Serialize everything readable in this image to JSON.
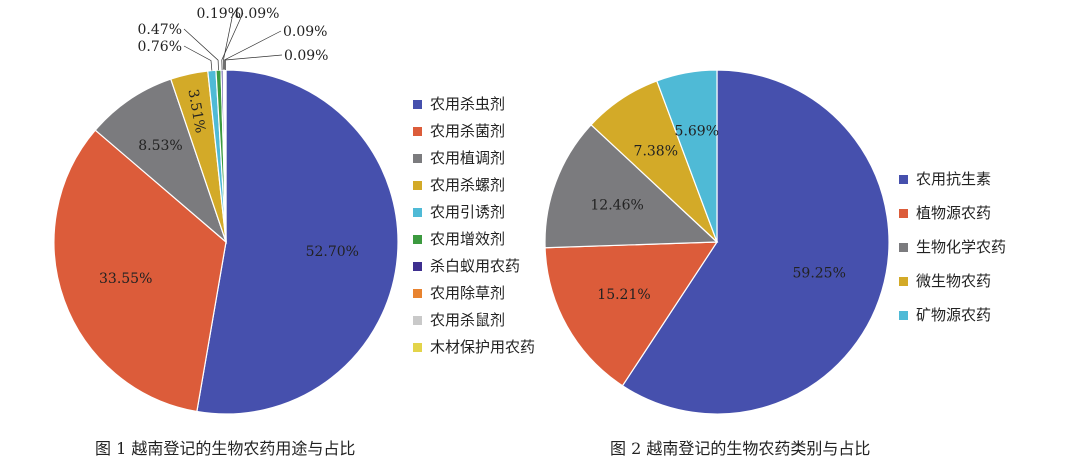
{
  "chart_data": [
    {
      "type": "pie",
      "caption": "图 1   越南登记的生物农药用途与占比",
      "slices": [
        {
          "label": "农用杀虫剂",
          "value": 52.7,
          "label_text": "52.70%",
          "color": "#4650ad"
        },
        {
          "label": "农用杀菌剂",
          "value": 33.55,
          "label_text": "33.55%",
          "color": "#dc5c3a"
        },
        {
          "label": "农用植调剂",
          "value": 8.53,
          "label_text": "8.53%",
          "color": "#7b7b7e"
        },
        {
          "label": "农用杀螺剂",
          "value": 3.51,
          "label_text": "3.51%",
          "color": "#d3aa28"
        },
        {
          "label": "农用引诱剂",
          "value": 0.76,
          "label_text": "0.76%",
          "color": "#4fbad6"
        },
        {
          "label": "农用增效剂",
          "value": 0.47,
          "label_text": "0.47%",
          "color": "#3c9a3f"
        },
        {
          "label": "杀白蚁用农药",
          "value": 0.19,
          "label_text": "0.19%",
          "color": "#3e2f8f"
        },
        {
          "label": "农用除草剂",
          "value": 0.09,
          "label_text": "0.09%",
          "color": "#e8832f"
        },
        {
          "label": "农用杀鼠剂",
          "value": 0.09,
          "label_text": "0.09%",
          "color": "#c9c9c9"
        },
        {
          "label": "木材保护用农药",
          "value": 0.09,
          "label_text": "0.09%",
          "color": "#e3d44a"
        }
      ]
    },
    {
      "type": "pie",
      "caption": "图 2   越南登记的生物农药类别与占比",
      "slices": [
        {
          "label": "农用抗生素",
          "value": 59.25,
          "label_text": "59.25%",
          "color": "#4650ad"
        },
        {
          "label": "植物源农药",
          "value": 15.21,
          "label_text": "15.21%",
          "color": "#dc5c3a"
        },
        {
          "label": "生物化学农药",
          "value": 12.46,
          "label_text": "12.46%",
          "color": "#7b7b7e"
        },
        {
          "label": "微生物农药",
          "value": 7.38,
          "label_text": "7.38%",
          "color": "#d3aa28"
        },
        {
          "label": "矿物源农药",
          "value": 5.69,
          "label_text": "5.69%",
          "color": "#4fbad6"
        }
      ]
    }
  ]
}
